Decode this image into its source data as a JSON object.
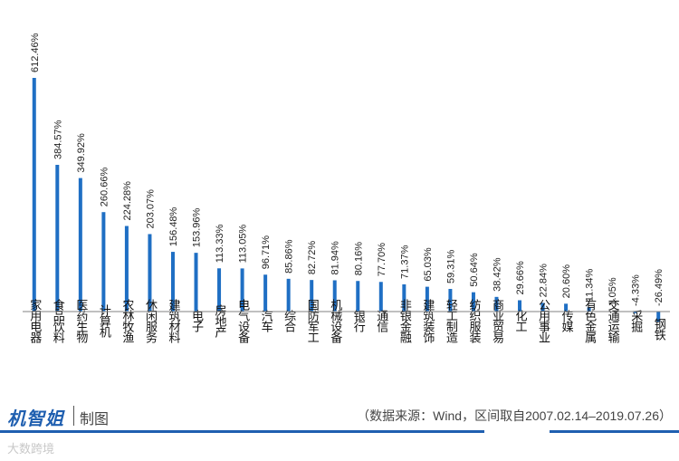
{
  "chart_data": {
    "type": "bar",
    "categories": [
      "家用电器",
      "食品饮料",
      "医药生物",
      "计算机",
      "农林牧渔",
      "休闲服务",
      "建筑材料",
      "电子",
      "房地产",
      "电气设备",
      "汽车",
      "综合",
      "国防军工",
      "机械设备",
      "银行",
      "通信",
      "非银金融",
      "建筑装饰",
      "轻工制造",
      "纺织服装",
      "商业贸易",
      "化工",
      "公用事业",
      "传媒",
      "有色金属",
      "交通运输",
      "采掘",
      "钢铁"
    ],
    "values": [
      612.46,
      384.57,
      349.92,
      260.66,
      224.28,
      203.07,
      156.48,
      153.96,
      113.33,
      113.05,
      96.71,
      85.86,
      82.72,
      81.94,
      80.16,
      77.7,
      71.37,
      65.03,
      59.31,
      50.64,
      38.42,
      29.66,
      22.84,
      20.6,
      11.34,
      1.05,
      -4.33,
      -26.49
    ],
    "data_labels": [
      "612.46%",
      "384.57%",
      "349.92%",
      "260.66%",
      "224.28%",
      "203.07%",
      "156.48%",
      "153.96%",
      "113.33%",
      "113.05%",
      "96.71%",
      "85.86%",
      "82.72%",
      "81.94%",
      "80.16%",
      "77.70%",
      "71.37%",
      "65.03%",
      "59.31%",
      "50.64%",
      "38.42%",
      "29.66%",
      "22.84%",
      "20.60%",
      "11.34%",
      "1.05%",
      "-4.33%",
      "-26.49%"
    ],
    "unit": "%",
    "color": "#1f6fc4",
    "grid": false,
    "legend": "none"
  },
  "footer": {
    "brand": "机智姐",
    "maker_label": "制图",
    "source": "（数据来源：Wind，区间取自2007.02.14–2019.07.26）"
  },
  "watermark": "大数跨境",
  "colors": {
    "brand": "#1f5fb0",
    "bar": "#1f6fc4",
    "axis": "#808080"
  }
}
